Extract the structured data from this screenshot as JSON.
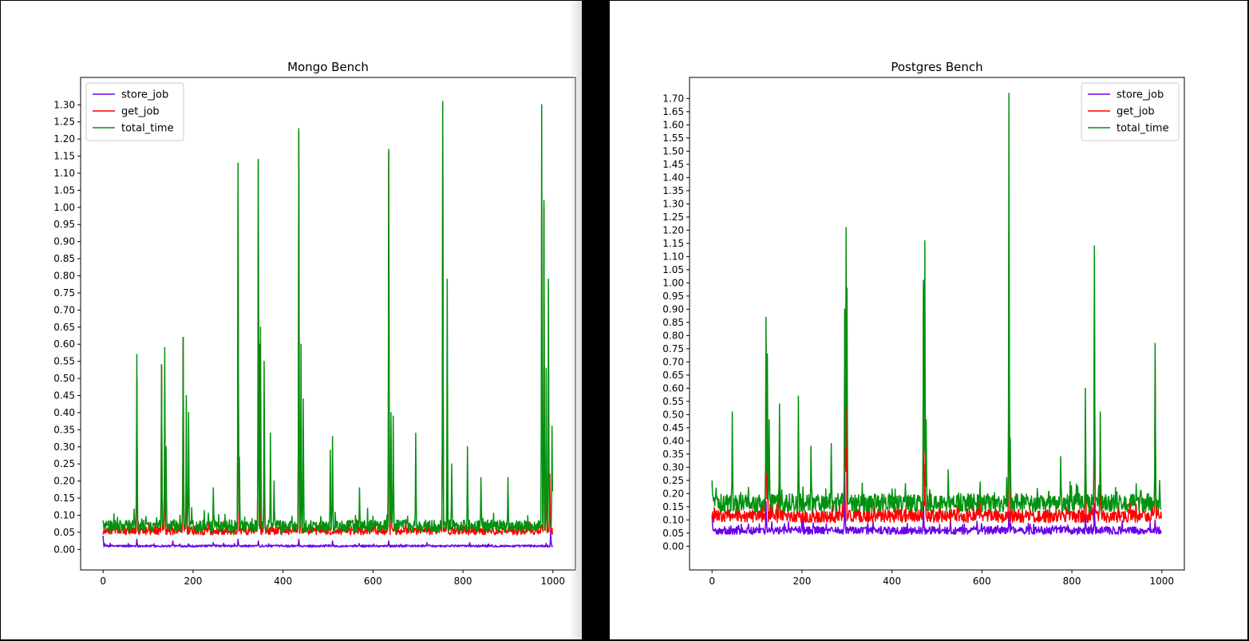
{
  "colors": {
    "store_job": "#6a00e8",
    "get_job": "#ff0000",
    "total_time": "#00910f"
  },
  "chart_data": [
    {
      "type": "line",
      "title": "Mongo Bench",
      "xlabel": "",
      "ylabel": "",
      "xlim": [
        -50,
        1050
      ],
      "ylim": [
        -0.06,
        1.38
      ],
      "xticks": [
        0,
        200,
        400,
        600,
        800,
        1000
      ],
      "xtick_labels": [
        "0",
        "200",
        "400",
        "600",
        "800",
        "1000"
      ],
      "ytick_step": 0.05,
      "ytick_max": 1.3,
      "ytick_labels": [
        "0.00",
        "0.05",
        "0.10",
        "0.15",
        "0.20",
        "0.25",
        "0.30",
        "0.35",
        "0.40",
        "0.45",
        "0.50",
        "0.55",
        "0.60",
        "0.65",
        "0.70",
        "0.75",
        "0.80",
        "0.85",
        "0.90",
        "0.95",
        "1.00",
        "1.05",
        "1.10",
        "1.15",
        "1.20",
        "1.25",
        "1.30"
      ],
      "legend": "top-left",
      "grid": false,
      "x_count": 1000,
      "series": [
        {
          "name": "store_job",
          "color_key": "store_job",
          "baseline": 0.01,
          "noise": 0.003,
          "spikes": [
            [
              0,
              0.04
            ],
            [
              75,
              0.03
            ],
            [
              155,
              0.025
            ],
            [
              245,
              0.02
            ],
            [
              300,
              0.03
            ],
            [
              345,
              0.025
            ],
            [
              435,
              0.03
            ],
            [
              510,
              0.025
            ],
            [
              635,
              0.025
            ],
            [
              720,
              0.02
            ],
            [
              815,
              0.02
            ],
            [
              995,
              0.055
            ]
          ]
        },
        {
          "name": "get_job",
          "color_key": "get_job",
          "baseline": 0.055,
          "noise": 0.012,
          "spikes": [
            [
              75,
              0.5
            ],
            [
              130,
              0.54
            ],
            [
              137,
              0.33
            ],
            [
              178,
              0.62
            ],
            [
              185,
              0.25
            ],
            [
              300,
              1.12
            ],
            [
              345,
              1.14
            ],
            [
              348,
              0.6
            ],
            [
              358,
              0.4
            ],
            [
              435,
              1.22
            ],
            [
              440,
              0.4
            ],
            [
              635,
              1.16
            ],
            [
              640,
              0.32
            ],
            [
              755,
              1.28
            ],
            [
              765,
              0.2
            ],
            [
              980,
              1.0
            ],
            [
              985,
              0.3
            ],
            [
              993,
              0.22
            ]
          ]
        },
        {
          "name": "total_time",
          "color_key": "total_time",
          "baseline": 0.068,
          "noise": 0.018,
          "spikes": [
            [
              0,
              0.085
            ],
            [
              75,
              0.57
            ],
            [
              130,
              0.54
            ],
            [
              137,
              0.59
            ],
            [
              140,
              0.3
            ],
            [
              178,
              0.62
            ],
            [
              185,
              0.45
            ],
            [
              190,
              0.4
            ],
            [
              245,
              0.18
            ],
            [
              300,
              1.13
            ],
            [
              303,
              0.27
            ],
            [
              345,
              1.14
            ],
            [
              350,
              0.65
            ],
            [
              358,
              0.55
            ],
            [
              372,
              0.34
            ],
            [
              380,
              0.2
            ],
            [
              435,
              1.23
            ],
            [
              440,
              0.6
            ],
            [
              445,
              0.44
            ],
            [
              505,
              0.29
            ],
            [
              510,
              0.33
            ],
            [
              570,
              0.18
            ],
            [
              635,
              1.17
            ],
            [
              640,
              0.4
            ],
            [
              645,
              0.39
            ],
            [
              695,
              0.34
            ],
            [
              755,
              1.31
            ],
            [
              765,
              0.79
            ],
            [
              775,
              0.25
            ],
            [
              810,
              0.3
            ],
            [
              840,
              0.21
            ],
            [
              900,
              0.21
            ],
            [
              975,
              1.3
            ],
            [
              980,
              1.02
            ],
            [
              985,
              0.53
            ],
            [
              990,
              0.79
            ],
            [
              998,
              0.36
            ]
          ]
        }
      ]
    },
    {
      "type": "line",
      "title": "Postgres Bench",
      "xlabel": "",
      "ylabel": "",
      "xlim": [
        -50,
        1050
      ],
      "ylim": [
        -0.09,
        1.78
      ],
      "xticks": [
        0,
        200,
        400,
        600,
        800,
        1000
      ],
      "xtick_labels": [
        "0",
        "200",
        "400",
        "600",
        "800",
        "1000"
      ],
      "ytick_step": 0.05,
      "ytick_max": 1.7,
      "ytick_labels": [
        "0.00",
        "0.05",
        "0.10",
        "0.15",
        "0.20",
        "0.25",
        "0.30",
        "0.35",
        "0.40",
        "0.45",
        "0.50",
        "0.55",
        "0.60",
        "0.65",
        "0.70",
        "0.75",
        "0.80",
        "0.85",
        "0.90",
        "0.95",
        "1.00",
        "1.05",
        "1.10",
        "1.15",
        "1.20",
        "1.25",
        "1.30",
        "1.35",
        "1.40",
        "1.45",
        "1.50",
        "1.55",
        "1.60",
        "1.65",
        "1.70"
      ],
      "legend": "top-right",
      "grid": false,
      "x_count": 1000,
      "series": [
        {
          "name": "store_job",
          "color_key": "store_job",
          "baseline": 0.06,
          "noise": 0.015,
          "spikes": [
            [
              0,
              0.12
            ],
            [
              120,
              0.17
            ],
            [
              200,
              0.12
            ],
            [
              295,
              0.28
            ],
            [
              470,
              0.17
            ],
            [
              530,
              0.1
            ],
            [
              660,
              0.13
            ],
            [
              830,
              0.12
            ],
            [
              850,
              0.16
            ],
            [
              985,
              0.1
            ]
          ]
        },
        {
          "name": "get_job",
          "color_key": "get_job",
          "baseline": 0.115,
          "noise": 0.025,
          "spikes": [
            [
              0,
              0.13
            ],
            [
              120,
              0.8
            ],
            [
              123,
              0.44
            ],
            [
              150,
              0.4
            ],
            [
              295,
              0.9
            ],
            [
              298,
              0.96
            ],
            [
              470,
              1.0
            ],
            [
              473,
              0.31
            ],
            [
              660,
              1.2
            ],
            [
              830,
              0.44
            ],
            [
              850,
              1.0
            ],
            [
              863,
              0.34
            ],
            [
              985,
              0.7
            ]
          ]
        },
        {
          "name": "total_time",
          "color_key": "total_time",
          "baseline": 0.165,
          "noise": 0.035,
          "spikes": [
            [
              0,
              0.25
            ],
            [
              45,
              0.51
            ],
            [
              120,
              0.87
            ],
            [
              123,
              0.73
            ],
            [
              127,
              0.48
            ],
            [
              150,
              0.54
            ],
            [
              192,
              0.57
            ],
            [
              220,
              0.38
            ],
            [
              265,
              0.39
            ],
            [
              295,
              0.9
            ],
            [
              298,
              1.21
            ],
            [
              300,
              0.98
            ],
            [
              470,
              1.01
            ],
            [
              473,
              1.16
            ],
            [
              476,
              0.48
            ],
            [
              525,
              0.29
            ],
            [
              660,
              1.72
            ],
            [
              663,
              0.41
            ],
            [
              775,
              0.34
            ],
            [
              830,
              0.6
            ],
            [
              850,
              1.14
            ],
            [
              863,
              0.51
            ],
            [
              985,
              0.77
            ],
            [
              995,
              0.25
            ]
          ]
        }
      ]
    }
  ]
}
